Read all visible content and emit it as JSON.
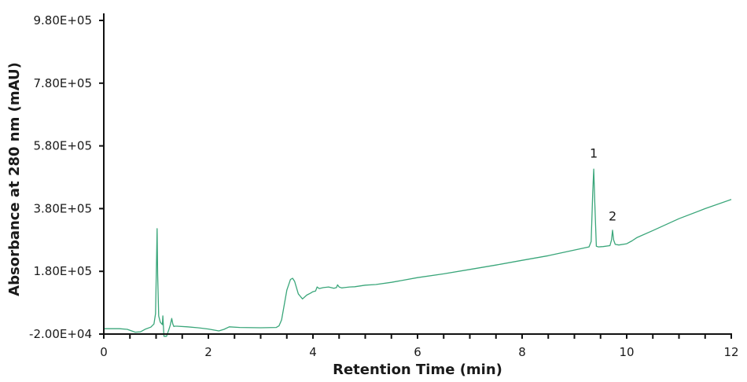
{
  "chart_data": {
    "type": "line",
    "title": "",
    "xlabel": "Retention Time (min)",
    "ylabel": "Absorbance at 280 nm (mAU)",
    "xlim": [
      0,
      12
    ],
    "ylim": [
      -20000,
      980000
    ],
    "grid": false,
    "legend": null,
    "line_color": "#3aa67a",
    "x_ticks": [
      0,
      2,
      4,
      6,
      8,
      10,
      12
    ],
    "x_tick_labels": [
      "0",
      "2",
      "4",
      "6",
      "8",
      "10",
      "12"
    ],
    "x_minor_step": 0.5,
    "y_ticks": [
      -20000,
      180000,
      380000,
      580000,
      780000,
      980000
    ],
    "y_tick_labels": [
      "-2.00E+04",
      "1.80E+05",
      "3.80E+05",
      "5.80E+05",
      "7.80E+05",
      "9.80E+05"
    ],
    "annotations": [
      {
        "label": "1",
        "x": 9.37,
        "y": 555000
      },
      {
        "label": "2",
        "x": 9.73,
        "y": 355000
      }
    ],
    "series": [
      {
        "name": "Absorbance at 280 nm",
        "x": [
          0.0,
          0.3,
          0.45,
          0.6,
          0.7,
          0.8,
          0.9,
          0.96,
          0.99,
          1.01,
          1.02,
          1.03,
          1.05,
          1.08,
          1.12,
          1.13,
          1.14,
          1.15,
          1.2,
          1.24,
          1.27,
          1.3,
          1.32,
          1.34,
          1.36,
          1.4,
          1.6,
          1.8,
          2.0,
          2.2,
          2.3,
          2.4,
          2.6,
          3.0,
          3.3,
          3.35,
          3.4,
          3.5,
          3.57,
          3.61,
          3.65,
          3.72,
          3.8,
          3.88,
          3.95,
          4.0,
          4.05,
          4.08,
          4.12,
          4.2,
          4.3,
          4.4,
          4.45,
          4.47,
          4.5,
          4.55,
          4.6,
          4.7,
          4.8,
          5.0,
          5.2,
          5.5,
          6.0,
          6.5,
          7.0,
          7.5,
          8.0,
          8.5,
          9.0,
          9.28,
          9.32,
          9.35,
          9.37,
          9.39,
          9.42,
          9.46,
          9.55,
          9.68,
          9.71,
          9.73,
          9.75,
          9.78,
          9.85,
          10.0,
          10.1,
          10.2,
          10.5,
          11.0,
          11.5,
          12.0
        ],
        "y": [
          -3000,
          -3000,
          -5000,
          -14000,
          -13000,
          -4000,
          2000,
          12000,
          45000,
          230000,
          316000,
          170000,
          38000,
          18000,
          10000,
          38000,
          5000,
          -27000,
          -27000,
          -8000,
          8000,
          30000,
          12000,
          4000,
          5000,
          5000,
          3000,
          0,
          -4000,
          -10000,
          -5000,
          3000,
          1000,
          0,
          1000,
          6000,
          25000,
          120000,
          154000,
          158000,
          148000,
          108000,
          92000,
          104000,
          110000,
          115000,
          117000,
          130000,
          125000,
          128000,
          130000,
          126000,
          128000,
          137000,
          130000,
          127000,
          128000,
          130000,
          131000,
          136000,
          138000,
          145000,
          160000,
          172000,
          186000,
          200000,
          215000,
          230000,
          248000,
          258000,
          275000,
          430000,
          506000,
          400000,
          260000,
          258000,
          259000,
          262000,
          280000,
          311000,
          280000,
          266000,
          264000,
          268000,
          277000,
          288000,
          310000,
          348000,
          380000,
          409000
        ]
      }
    ]
  }
}
